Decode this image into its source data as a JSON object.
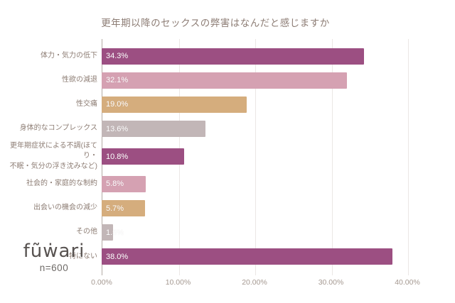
{
  "chart_data": {
    "type": "bar",
    "orientation": "horizontal",
    "title": "更年期以降のセックスの弊害はなんだと感じますか",
    "categories": [
      "体力・気力の低下",
      "性欲の減退",
      "性交痛",
      "身体的なコンプレックス",
      "更年期症状による不調(ほてり・\n不眠・気分の浮き沈みなど)",
      "社会的・家庭的な制約",
      "出会いの機会の減少",
      "その他",
      "特にない"
    ],
    "values": [
      34.3,
      32.1,
      19.0,
      13.6,
      10.8,
      5.8,
      5.7,
      1.5,
      38.0
    ],
    "value_labels": [
      "34.3%",
      "32.1%",
      "19.0%",
      "13.6%",
      "10.8%",
      "5.8%",
      "5.7%",
      "1.5%",
      "38.0%"
    ],
    "bar_colors": [
      "#9c4f82",
      "#d5a1b2",
      "#d5ad7d",
      "#c2b6b7",
      "#9c4f82",
      "#d5a1b2",
      "#d5ad7d",
      "#c2b6b7",
      "#9c4f82"
    ],
    "xlabel": "",
    "ylabel": "",
    "xlim": [
      0,
      40
    ],
    "x_tick_values": [
      0,
      10,
      20,
      30,
      40
    ],
    "x_tick_labels": [
      "0.00%",
      "10.00%",
      "20.00%",
      "30.00%",
      "40.00%"
    ],
    "grid": "vertical-gridlines-every-10pct",
    "legend": "none"
  },
  "footer": {
    "logo_text": "fũẇari",
    "sample_size": "n=600"
  },
  "colors": {
    "title_text": "#8e7e76",
    "category_text": "#8d7d74",
    "tick_text": "#a49890",
    "value_text": "#ffffff",
    "gridline": "#ebe7e5",
    "axis_line": "#b3aba5",
    "background": "#ffffff"
  }
}
